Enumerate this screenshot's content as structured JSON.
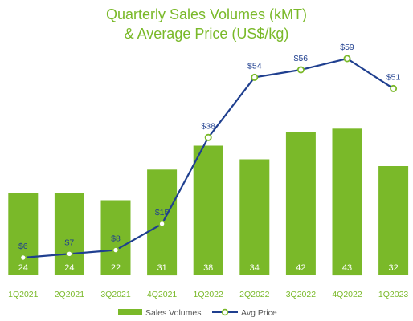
{
  "chart_data": {
    "type": "bar+line",
    "title_line1": "Quarterly Sales Volumes (kMT)",
    "title_line2": "& Average Price (US$/kg)",
    "categories": [
      "1Q2021",
      "2Q2021",
      "3Q2021",
      "4Q2021",
      "1Q2022",
      "2Q2022",
      "3Q2022",
      "4Q2022",
      "1Q2023"
    ],
    "series": [
      {
        "name": "Sales Volumes",
        "type": "bar",
        "color": "#7ab929",
        "values": [
          24,
          24,
          22,
          31,
          38,
          34,
          42,
          43,
          32
        ],
        "labels": [
          "24",
          "24",
          "22",
          "31",
          "38",
          "34",
          "42",
          "43",
          "32"
        ]
      },
      {
        "name": "Avg Price",
        "type": "line",
        "color": "#1f3f8f",
        "marker_color": "#7ab929",
        "values": [
          6,
          7,
          8,
          15,
          38,
          54,
          56,
          59,
          51
        ],
        "labels": [
          "$6",
          "$7",
          "$8",
          "$15",
          "$38",
          "$54",
          "$56",
          "$59",
          "$51"
        ]
      }
    ],
    "legend_position": "bottom",
    "grid": false
  }
}
